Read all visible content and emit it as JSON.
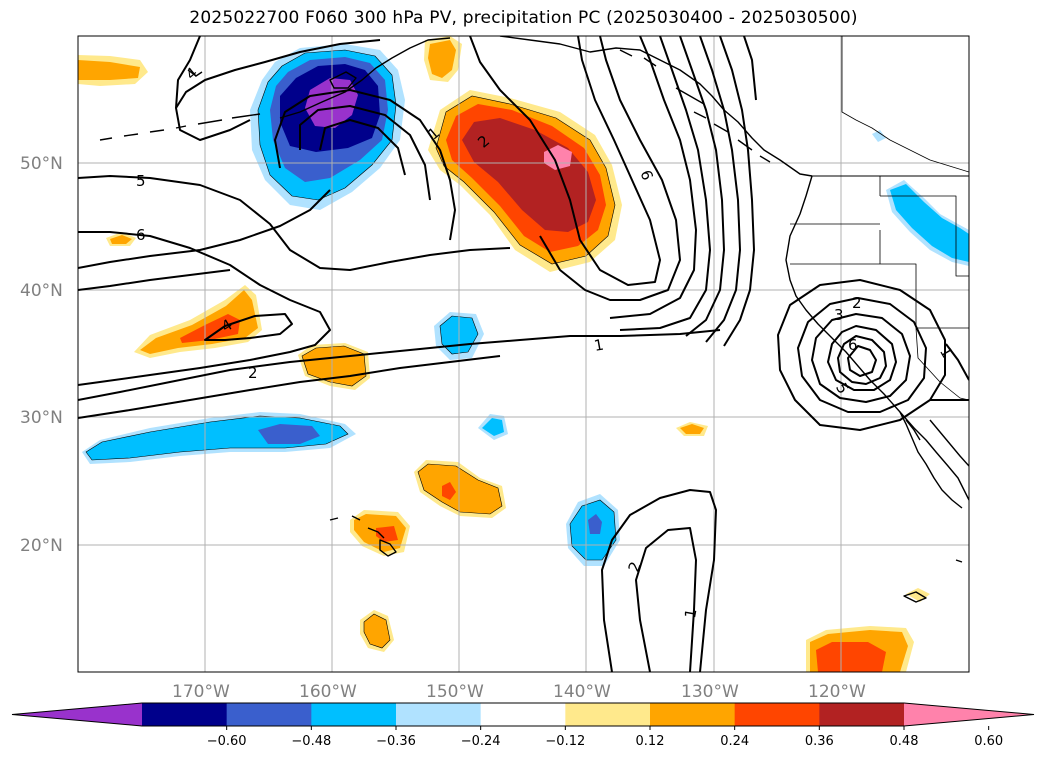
{
  "title": "2025022700 F060 300 hPa PV, precipitation PC (2025030400 - 2025030500)",
  "lat_ticks": [
    "20°N",
    "30°N",
    "40°N",
    "50°N"
  ],
  "lon_ticks": [
    "170°W",
    "160°W",
    "150°W",
    "140°W",
    "130°W",
    "120°W"
  ],
  "colorbar": {
    "labels": [
      "−0.60",
      "−0.48",
      "−0.36",
      "−0.24",
      "−0.12",
      "0.12",
      "0.24",
      "0.36",
      "0.48",
      "0.60"
    ],
    "colors": [
      "#9932cc",
      "#00008b",
      "#3a5fcd",
      "#00bfff",
      "#b0e2ff",
      "#ffffff",
      "#ffe98c",
      "#ffa500",
      "#ff4500",
      "#b22222",
      "#ff82ab"
    ],
    "extend": "both"
  },
  "contour_labels": [
    "5",
    "6",
    "4",
    "2",
    "1",
    "2",
    "6",
    "1",
    "2",
    "3",
    "6",
    "5",
    "1",
    "2",
    "1",
    "4"
  ],
  "colors": {
    "land_outline": "#000000",
    "grid": "#b0b0b0",
    "contour": "#000000"
  }
}
